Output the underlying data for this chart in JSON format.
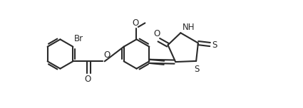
{
  "bg_color": "#ffffff",
  "line_color": "#2a2a2a",
  "line_width": 1.5,
  "font_size": 8.5,
  "figsize": [
    4.25,
    1.52
  ],
  "dpi": 100,
  "xlim": [
    0,
    9.5
  ],
  "ylim": [
    0,
    3.8
  ]
}
